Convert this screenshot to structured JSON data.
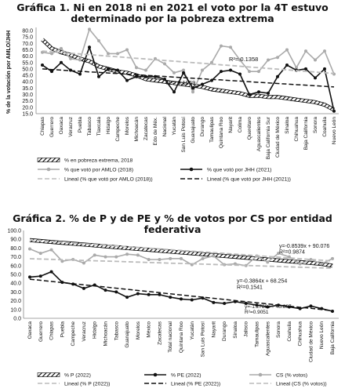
{
  "charts": [
    {
      "title_line1": "Gráfica 1. Ni en 2018 ni en 2021 el voto por la 4T estuvo",
      "title_line2": "determinado por la pobreza extrema",
      "ylabel": "% de la votación por AMLO/JHH",
      "yticks": [
        "15.0",
        "20.0",
        "25.0",
        "30.0",
        "35.0",
        "40.0",
        "45.0",
        "50.0",
        "55.0",
        "60.0",
        "65.0",
        "70.0",
        "75.0",
        "80.0"
      ],
      "r2_annotations": [
        "R²= 0.1358",
        "R²= 0.1959"
      ],
      "legend": [
        "% en pobreza extrema, 2018",
        "% que votó por AMLO (2018)",
        "% que votó por JHH (2021)",
        "Lineal (% que votó por AMLO (2018))",
        "Lineal (% que votó por JHH (2021))"
      ]
    },
    {
      "title": "Gráfica 2. % de P y de PE y % de votos por CS por entidad federativa",
      "yticks": [
        "0.0",
        "10.0",
        "20.0",
        "30.0",
        "40.0",
        "50.0",
        "60.0",
        "70.0",
        "80.0",
        "90.0",
        "100.0"
      ],
      "equations": [
        "y=-0.8539x + 90.076",
        "R²=0.9874",
        "y=-0.3864x + 68.254",
        "R²=0.1541",
        "y=-1.2786x + 45.807",
        "R²=0.9051"
      ],
      "legend": [
        "% P (2022)",
        "% PE (2022)",
        "CS (% votos)",
        "Lineal (% P (2022))",
        "Lineal (% PE (2022))",
        "Lineal (CS (% votos))"
      ]
    }
  ],
  "chart_data": [
    {
      "type": "line",
      "title": "Gráfica 1. Ni en 2018 ni en 2021 el voto por la 4T estuvo determinado por la pobreza extrema",
      "ylabel": "% de la votación por AMLO/JHH",
      "ylim": [
        15,
        80
      ],
      "categories": [
        "Chiapas",
        "Guerrero",
        "Oaxaca",
        "Veracruz",
        "Puebla",
        "Tabasco",
        "Tlaxcala",
        "Hidalgo",
        "Campeche",
        "Morelos",
        "Michoacán",
        "Zacatecas",
        "Edo de Méx.",
        "Nacional",
        "Yucatán",
        "San Luis Potosí",
        "Guanajuato",
        "Durango",
        "Tamaulipas",
        "Quintana Roo",
        "Nayarit",
        "Colima",
        "Querétaro",
        "Aguascalientes",
        "Baja California Sur",
        "Ciudad de México",
        "Sinaloa",
        "Chihuahua",
        "Baja California",
        "Sonora",
        "Coahuila",
        "Nuevo León"
      ],
      "series": [
        {
          "name": "% en pobreza extrema, 2018",
          "color": "#111111",
          "style": "hatched",
          "values": [
            73,
            66,
            63,
            61,
            58,
            56,
            52,
            50,
            48,
            47,
            45,
            42,
            41,
            40,
            39,
            38,
            37,
            36,
            34,
            33,
            32,
            31,
            29,
            29,
            28,
            28,
            27,
            26,
            25,
            24,
            22,
            18
          ]
        },
        {
          "name": "% que votó por AMLO (2018)",
          "color": "#aaaaaa",
          "style": "solid-marker",
          "values": [
            63,
            62,
            66,
            58,
            57,
            81,
            72,
            62,
            62,
            65,
            51,
            49,
            58,
            54,
            47,
            49,
            32,
            49,
            55,
            68,
            67,
            57,
            48,
            48,
            57,
            59,
            65,
            51,
            64,
            57,
            64,
            46
          ]
        },
        {
          "name": "% que votó por JHH (2021)",
          "color": "#111111",
          "style": "solid-marker",
          "values": [
            53,
            48,
            55,
            49,
            46,
            67,
            44,
            50,
            49,
            41,
            44,
            44,
            44,
            42,
            32,
            47,
            35,
            38,
            41,
            48,
            49,
            46,
            30,
            32,
            31,
            44,
            53,
            49,
            50,
            43,
            50,
            17
          ]
        },
        {
          "name": "Lineal (% que votó por AMLO (2018))",
          "color": "#bbbbbb",
          "style": "dashed",
          "values": [
            64,
            63.4,
            62.9,
            62.3,
            61.7,
            61.2,
            60.6,
            60,
            59.5,
            58.9,
            58.3,
            57.8,
            57.2,
            56.6,
            56.1,
            55.5,
            54.9,
            54.4,
            53.8,
            53.2,
            52.7,
            52.1,
            51.5,
            51,
            50.4,
            49.8,
            49.3,
            48.7,
            48.1,
            47.6,
            47,
            46.4
          ]
        },
        {
          "name": "Lineal (% que votó por JHH (2021))",
          "color": "#111111",
          "style": "dashed",
          "values": [
            50,
            49.5,
            49.1,
            48.6,
            48.2,
            47.7,
            47.3,
            46.8,
            46.4,
            45.9,
            45.5,
            45,
            44.5,
            44.1,
            43.6,
            43.2,
            42.7,
            42.3,
            41.8,
            41.4,
            40.9,
            40.5,
            40,
            39.5,
            39.1,
            38.6,
            38.2,
            37.7,
            37.3,
            36.8,
            36.4,
            35.9
          ]
        }
      ],
      "annotations": [
        "R²= 0.1358",
        "R²= 0.1959"
      ]
    },
    {
      "type": "line",
      "title": "Gráfica 2. % de P y de PE y % de votos por CS por entidad federativa",
      "ylim": [
        0,
        100
      ],
      "categories": [
        "Oaxaca",
        "Guerrero",
        "Chiapas",
        "Puebla",
        "Campeche",
        "Veracruz",
        "Hidalgo",
        "Michoacán",
        "Tabasco",
        "Guanajuato",
        "Morelos",
        "México",
        "Zacatecas",
        "Total nacional",
        "Quintana Roo",
        "Yucatán",
        "San Luis Potosí",
        "Nayarit",
        "Durango",
        "Sinaloa",
        "Jalisco",
        "Tamaulipas",
        "Aguascalientes",
        "Sonora",
        "Coahuila",
        "Chihuahua",
        "Ciudad de México",
        "Nuevo León",
        "Baja California"
      ],
      "series": [
        {
          "name": "% P (2022)",
          "color": "#111111",
          "style": "hatched",
          "values": [
            89,
            88,
            87,
            86,
            85,
            84,
            83,
            82,
            81,
            80,
            79,
            78,
            77,
            76,
            75,
            74,
            73,
            72,
            71,
            70,
            69,
            68,
            67,
            66,
            65,
            64,
            63,
            62,
            60
          ]
        },
        {
          "name": "% PE (2022)",
          "color": "#111111",
          "style": "solid-marker",
          "values": [
            47,
            48,
            53,
            41,
            39,
            34,
            38,
            32,
            30,
            24,
            28,
            27,
            27,
            24,
            22,
            21,
            23,
            18,
            17,
            19,
            17,
            15,
            13,
            15,
            13,
            11,
            14,
            11,
            8
          ]
        },
        {
          "name": "CS (% votos)",
          "color": "#aaaaaa",
          "style": "solid-marker",
          "values": [
            79,
            74,
            78,
            65,
            67,
            63,
            72,
            70,
            70,
            73,
            72,
            67,
            67,
            68,
            68,
            61,
            68,
            71,
            61,
            62,
            60,
            71,
            64,
            74,
            70,
            62,
            67,
            62,
            68
          ]
        },
        {
          "name": "Lineal (% P (2022))",
          "color": "#bbbbbb",
          "style": "dashed",
          "values": [
            89.2,
            88.4,
            87.5,
            86.7,
            85.8,
            84.9,
            84.1,
            83.2,
            82.4,
            81.5,
            80.7,
            79.8,
            79,
            78.1,
            77.3,
            76.4,
            75.6,
            74.7,
            73.9,
            73,
            72.2,
            71.3,
            70.4,
            69.6,
            68.7,
            67.9,
            67,
            66.2,
            65.3
          ]
        },
        {
          "name": "Lineal (% PE (2022))",
          "color": "#111111",
          "style": "dashed",
          "values": [
            44.5,
            43.3,
            42,
            40.7,
            39.4,
            38.1,
            36.9,
            35.6,
            34.3,
            33,
            31.7,
            30.5,
            29.2,
            27.9,
            26.6,
            25.3,
            24.1,
            22.8,
            21.5,
            20.2,
            18.9,
            17.7,
            16.4,
            15.1,
            13.8,
            12.5,
            11.3,
            10,
            8.7
          ]
        },
        {
          "name": "Lineal (CS (% votos))",
          "color": "#bbbbbb",
          "style": "dashed",
          "values": [
            67.9,
            67.5,
            67.1,
            66.7,
            66.3,
            65.9,
            65.5,
            65.2,
            64.8,
            64.4,
            64,
            63.6,
            63.2,
            62.8,
            62.5,
            62.1,
            61.7,
            61.3,
            60.9,
            60.5,
            60.1,
            59.8,
            59.4,
            59,
            58.6,
            58.2,
            57.8,
            57.4,
            57.1
          ]
        }
      ],
      "annotations": [
        "y=-0.8539x + 90.076",
        "R²=0.9874",
        "y=-0.3864x + 68.254",
        "R²=0.1541",
        "y=-1.2786x + 45.807",
        "R²=0.9051"
      ]
    }
  ]
}
